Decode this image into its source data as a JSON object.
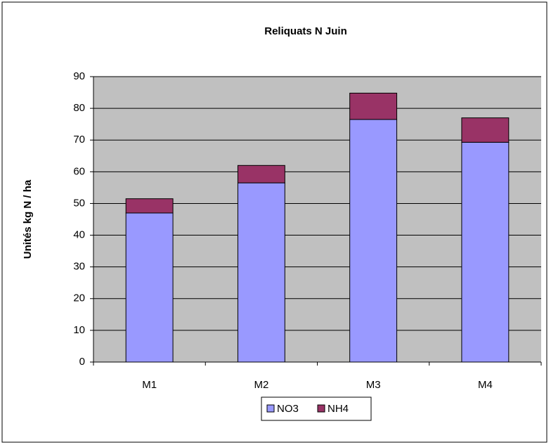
{
  "chart_data": {
    "type": "bar",
    "stacked": true,
    "title": "Reliquats N Juin",
    "y_label": "Unités kg N / ha",
    "categories": [
      "M1",
      "M2",
      "M3",
      "M4"
    ],
    "series": [
      {
        "name": "NO3",
        "color": "#9999ff",
        "values": [
          47,
          56.5,
          76.5,
          69.3
        ]
      },
      {
        "name": "NH4",
        "color": "#993366",
        "values": [
          4.5,
          5.5,
          8.3,
          7.7
        ]
      }
    ],
    "ylim": [
      0,
      90
    ],
    "yticks": [
      0,
      10,
      20,
      30,
      40,
      50,
      60,
      70,
      80,
      90
    ],
    "grid": true,
    "legend": "bottom"
  }
}
